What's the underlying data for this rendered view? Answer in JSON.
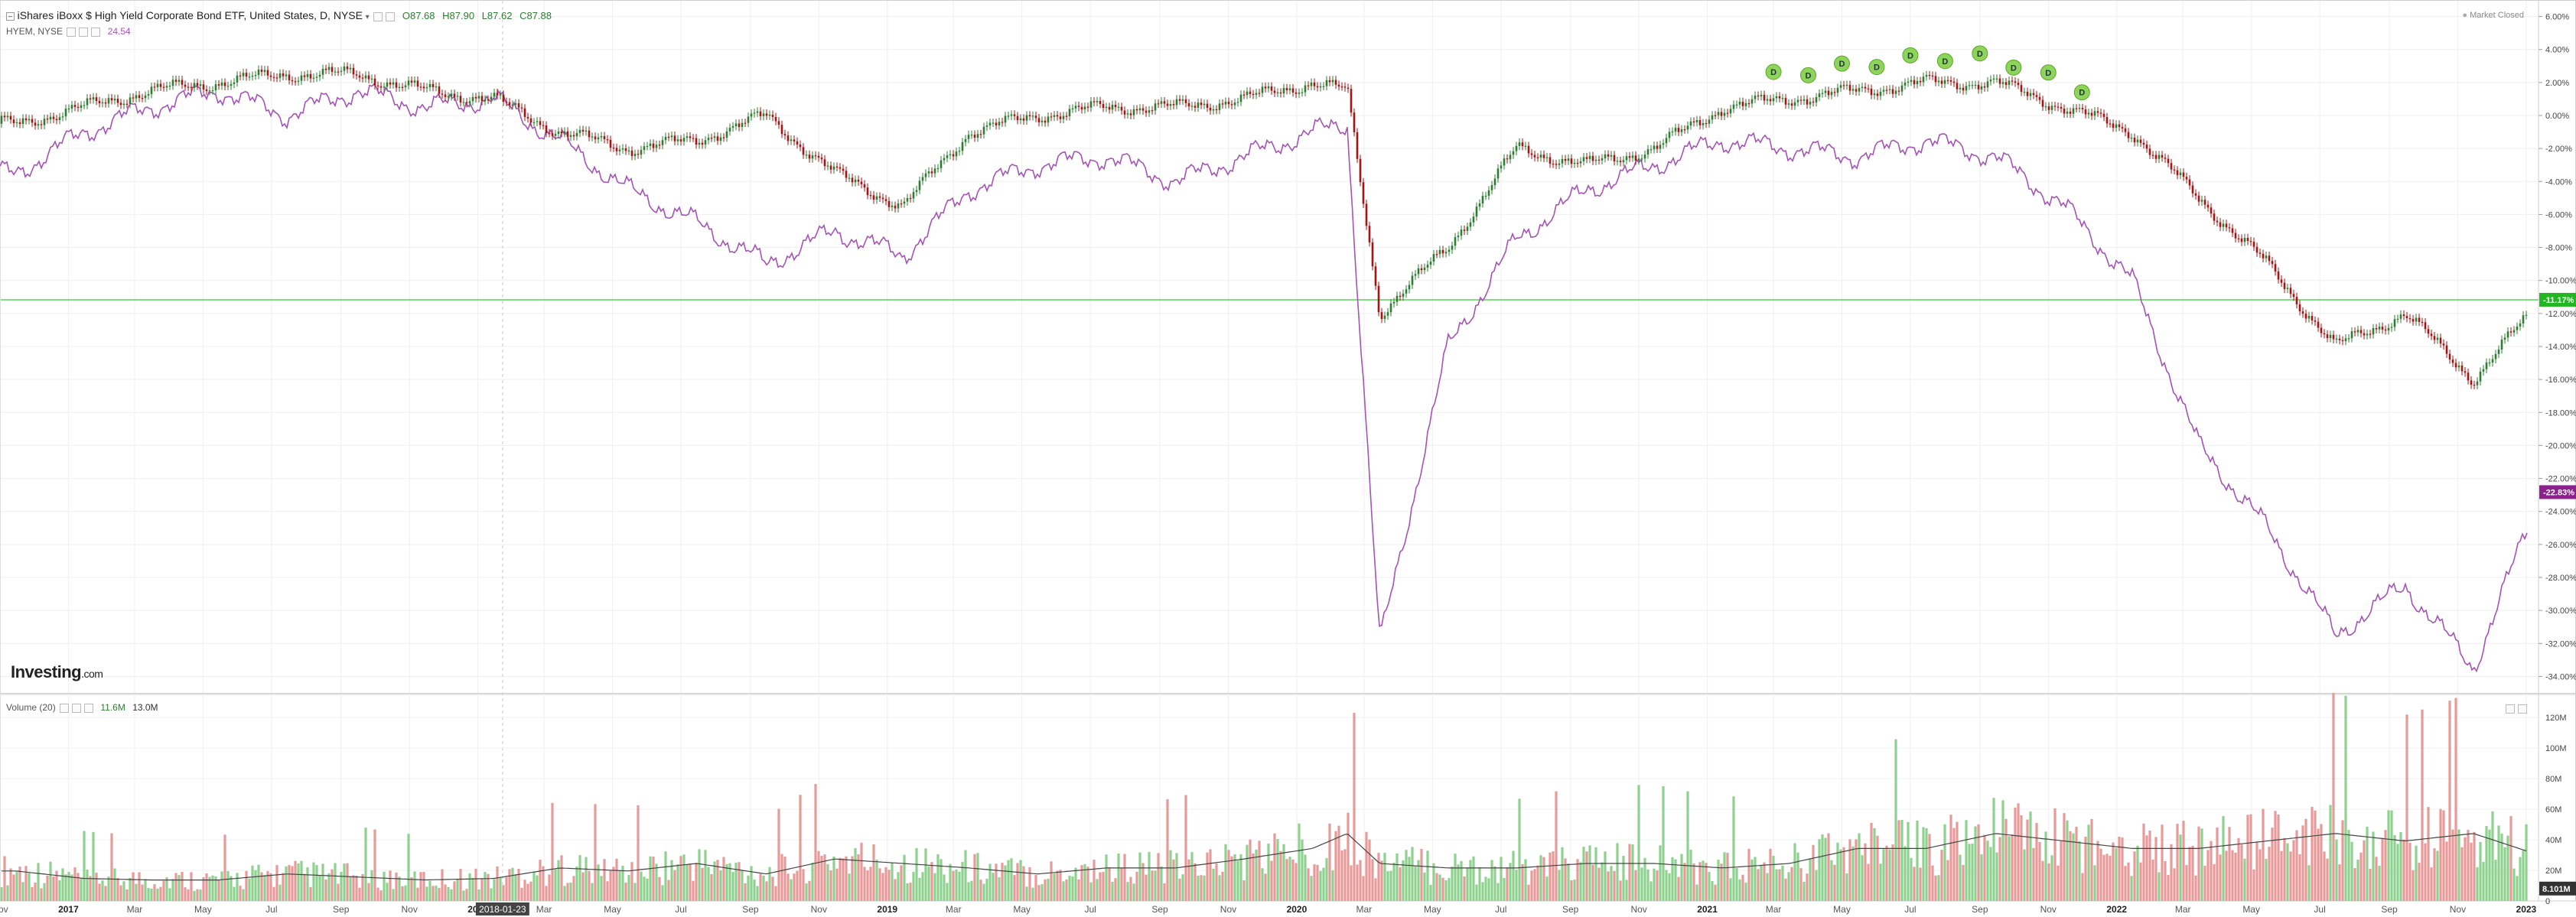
{
  "header": {
    "title": "iShares iBoxx $ High Yield Corporate Bond ETF, United States, D, NYSE",
    "ohlc": {
      "open": "O87.68",
      "high": "H87.90",
      "low": "L87.62",
      "close": "C87.88"
    },
    "market_status": "Market Closed"
  },
  "compare": {
    "label": "HYEM, NYSE",
    "value": "24.54"
  },
  "volume": {
    "label": "Volume (20)",
    "value1": "11.6M",
    "value2": "13.0M"
  },
  "logo": {
    "text": "Investing",
    "suffix": ".com"
  },
  "crosshair": {
    "date": "2018-01-23"
  },
  "colors": {
    "up": "#2e7d32",
    "down": "#a31515",
    "compare": "#a454b5",
    "vol_up": "#8fd18f",
    "vol_down": "#e79a9a",
    "hline": "#59d459",
    "badge_green": "#22b622",
    "badge_purple": "#8e1f8e",
    "dividend": "#8fd45a"
  },
  "chart_data": {
    "type": "line",
    "x": [
      "2016-11",
      "2017-01",
      "2017-03",
      "2017-05",
      "2017-07",
      "2017-09",
      "2017-11",
      "2018-01",
      "2018-03",
      "2018-05",
      "2018-07",
      "2018-09",
      "2018-11",
      "2019-01",
      "2019-03",
      "2019-05",
      "2019-07",
      "2019-09",
      "2019-11",
      "2020-01",
      "2020-02",
      "2020-03",
      "2020-05",
      "2020-07",
      "2020-09",
      "2020-11",
      "2021-01",
      "2021-03",
      "2021-05",
      "2021-07",
      "2021-09",
      "2021-11",
      "2022-01",
      "2022-03",
      "2022-05",
      "2022-07",
      "2022-09",
      "2022-11",
      "2023-01"
    ],
    "series": [
      {
        "name": "iShares iBoxx $ High Yield Corporate Bond ETF",
        "style": "candlestick",
        "values": [
          -0.5,
          0.5,
          1.5,
          2.0,
          2.5,
          2.5,
          1.5,
          1.0,
          -1.0,
          -2.0,
          -1.5,
          0.0,
          -3.5,
          -5.5,
          -1.0,
          0.0,
          0.5,
          0.5,
          1.0,
          2.0,
          1.5,
          -12.0,
          -8.0,
          -2.0,
          -3.0,
          -2.0,
          0.5,
          1.0,
          1.5,
          2.0,
          2.0,
          0.5,
          -1.0,
          -5.0,
          -9.0,
          -14.0,
          -12.0,
          -16.0,
          -11.2
        ]
      },
      {
        "name": "HYEM, NYSE",
        "values": [
          -3.5,
          -1.0,
          0.5,
          1.5,
          0.0,
          1.5,
          0.5,
          1.0,
          -1.5,
          -4.5,
          -6.5,
          -9.0,
          -7.0,
          -8.5,
          -4.5,
          -3.0,
          -2.5,
          -4.0,
          -2.5,
          -1.0,
          -0.5,
          -32.0,
          -14.0,
          -7.5,
          -4.5,
          -3.0,
          -1.5,
          -2.0,
          -2.5,
          -1.5,
          -2.5,
          -5.5,
          -10.0,
          -20.0,
          -25.0,
          -31.5,
          -28.5,
          -33.5,
          -22.8
        ]
      }
    ],
    "y_axis": {
      "ticks": [
        "6.00%",
        "4.00%",
        "2.00%",
        "0.00%",
        "-2.00%",
        "-4.00%",
        "-6.00%",
        "-8.00%",
        "-10.00%",
        "-12.00%",
        "-14.00%",
        "-16.00%",
        "-18.00%",
        "-20.00%",
        "-22.00%",
        "-24.00%",
        "-26.00%",
        "-28.00%",
        "-30.00%",
        "-32.00%",
        "-34.00%"
      ],
      "min": -35,
      "max": 7,
      "last_value_labels": [
        "-11.17%",
        "-22.83%"
      ]
    },
    "x_axis": {
      "tick_labels": [
        "Nov",
        "2017",
        "Mar",
        "May",
        "Jul",
        "Sep",
        "Nov",
        "2018",
        "Mar",
        "May",
        "Jul",
        "Sep",
        "Nov",
        "2019",
        "Mar",
        "May",
        "Jul",
        "Sep",
        "Nov",
        "2020",
        "Mar",
        "May",
        "Jul",
        "Sep",
        "Nov",
        "2021",
        "Mar",
        "May",
        "Jul",
        "Sep",
        "Nov",
        "2022",
        "Mar",
        "May",
        "Jul",
        "Sep",
        "Nov",
        "2023"
      ]
    },
    "horizontal_line": -11.17,
    "dividend_markers": {
      "label": "D",
      "dates": [
        "2021-03",
        "2021-04",
        "2021-05",
        "2021-06",
        "2021-07",
        "2021-08",
        "2021-09",
        "2021-10",
        "2021-11",
        "2021-12"
      ]
    },
    "volume": {
      "ticks": [
        "120M",
        "100M",
        "80M",
        "60M",
        "40M",
        "20M",
        "0"
      ],
      "max": 130,
      "last_value_label": "8.101M",
      "values_millions": [
        20,
        15,
        14,
        14,
        18,
        16,
        14,
        15,
        22,
        20,
        25,
        18,
        28,
        25,
        22,
        18,
        22,
        22,
        28,
        35,
        45,
        25,
        22,
        22,
        25,
        25,
        22,
        25,
        35,
        35,
        45,
        40,
        35,
        35,
        40,
        45,
        40,
        45,
        30
      ]
    },
    "grid": true
  }
}
